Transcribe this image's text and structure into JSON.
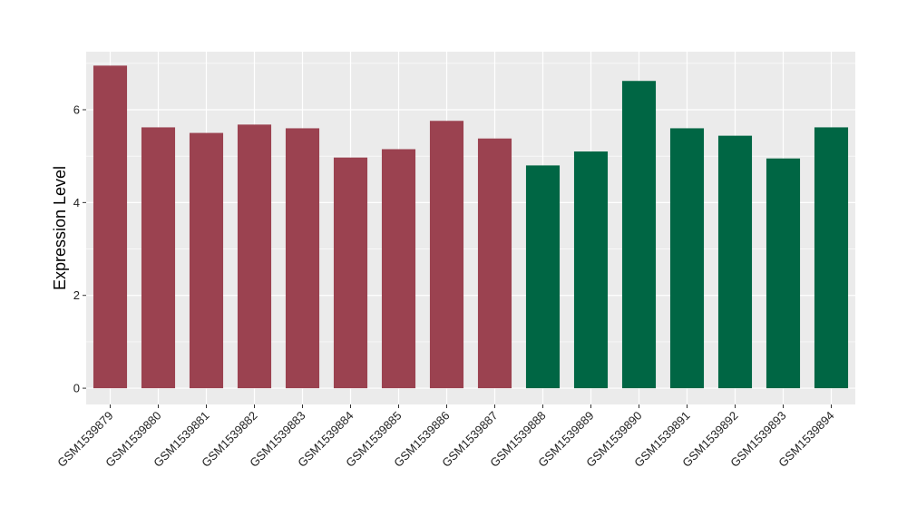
{
  "chart_data": {
    "type": "bar",
    "title": "",
    "xlabel": "",
    "ylabel": "Expression Level",
    "ylim": [
      -0.35,
      7.25
    ],
    "yticks": [
      0,
      2,
      4,
      6
    ],
    "grid": true,
    "legend": "none",
    "categories": [
      "GSM1539879",
      "GSM1539880",
      "GSM1539881",
      "GSM1539882",
      "GSM1539883",
      "GSM1539884",
      "GSM1539885",
      "GSM1539886",
      "GSM1539887",
      "GSM1539888",
      "GSM1539889",
      "GSM1539890",
      "GSM1539891",
      "GSM1539892",
      "GSM1539893",
      "GSM1539894"
    ],
    "values": [
      6.95,
      5.62,
      5.5,
      5.68,
      5.6,
      4.97,
      5.15,
      5.76,
      5.38,
      4.8,
      5.1,
      6.62,
      5.6,
      5.44,
      4.95,
      5.62
    ],
    "groups": [
      0,
      0,
      0,
      0,
      0,
      0,
      0,
      0,
      0,
      1,
      1,
      1,
      1,
      1,
      1,
      1
    ],
    "group_colors": [
      "#9b4250",
      "#006644"
    ],
    "panel_background": "#ebebeb",
    "grid_color": "#ffffff"
  }
}
